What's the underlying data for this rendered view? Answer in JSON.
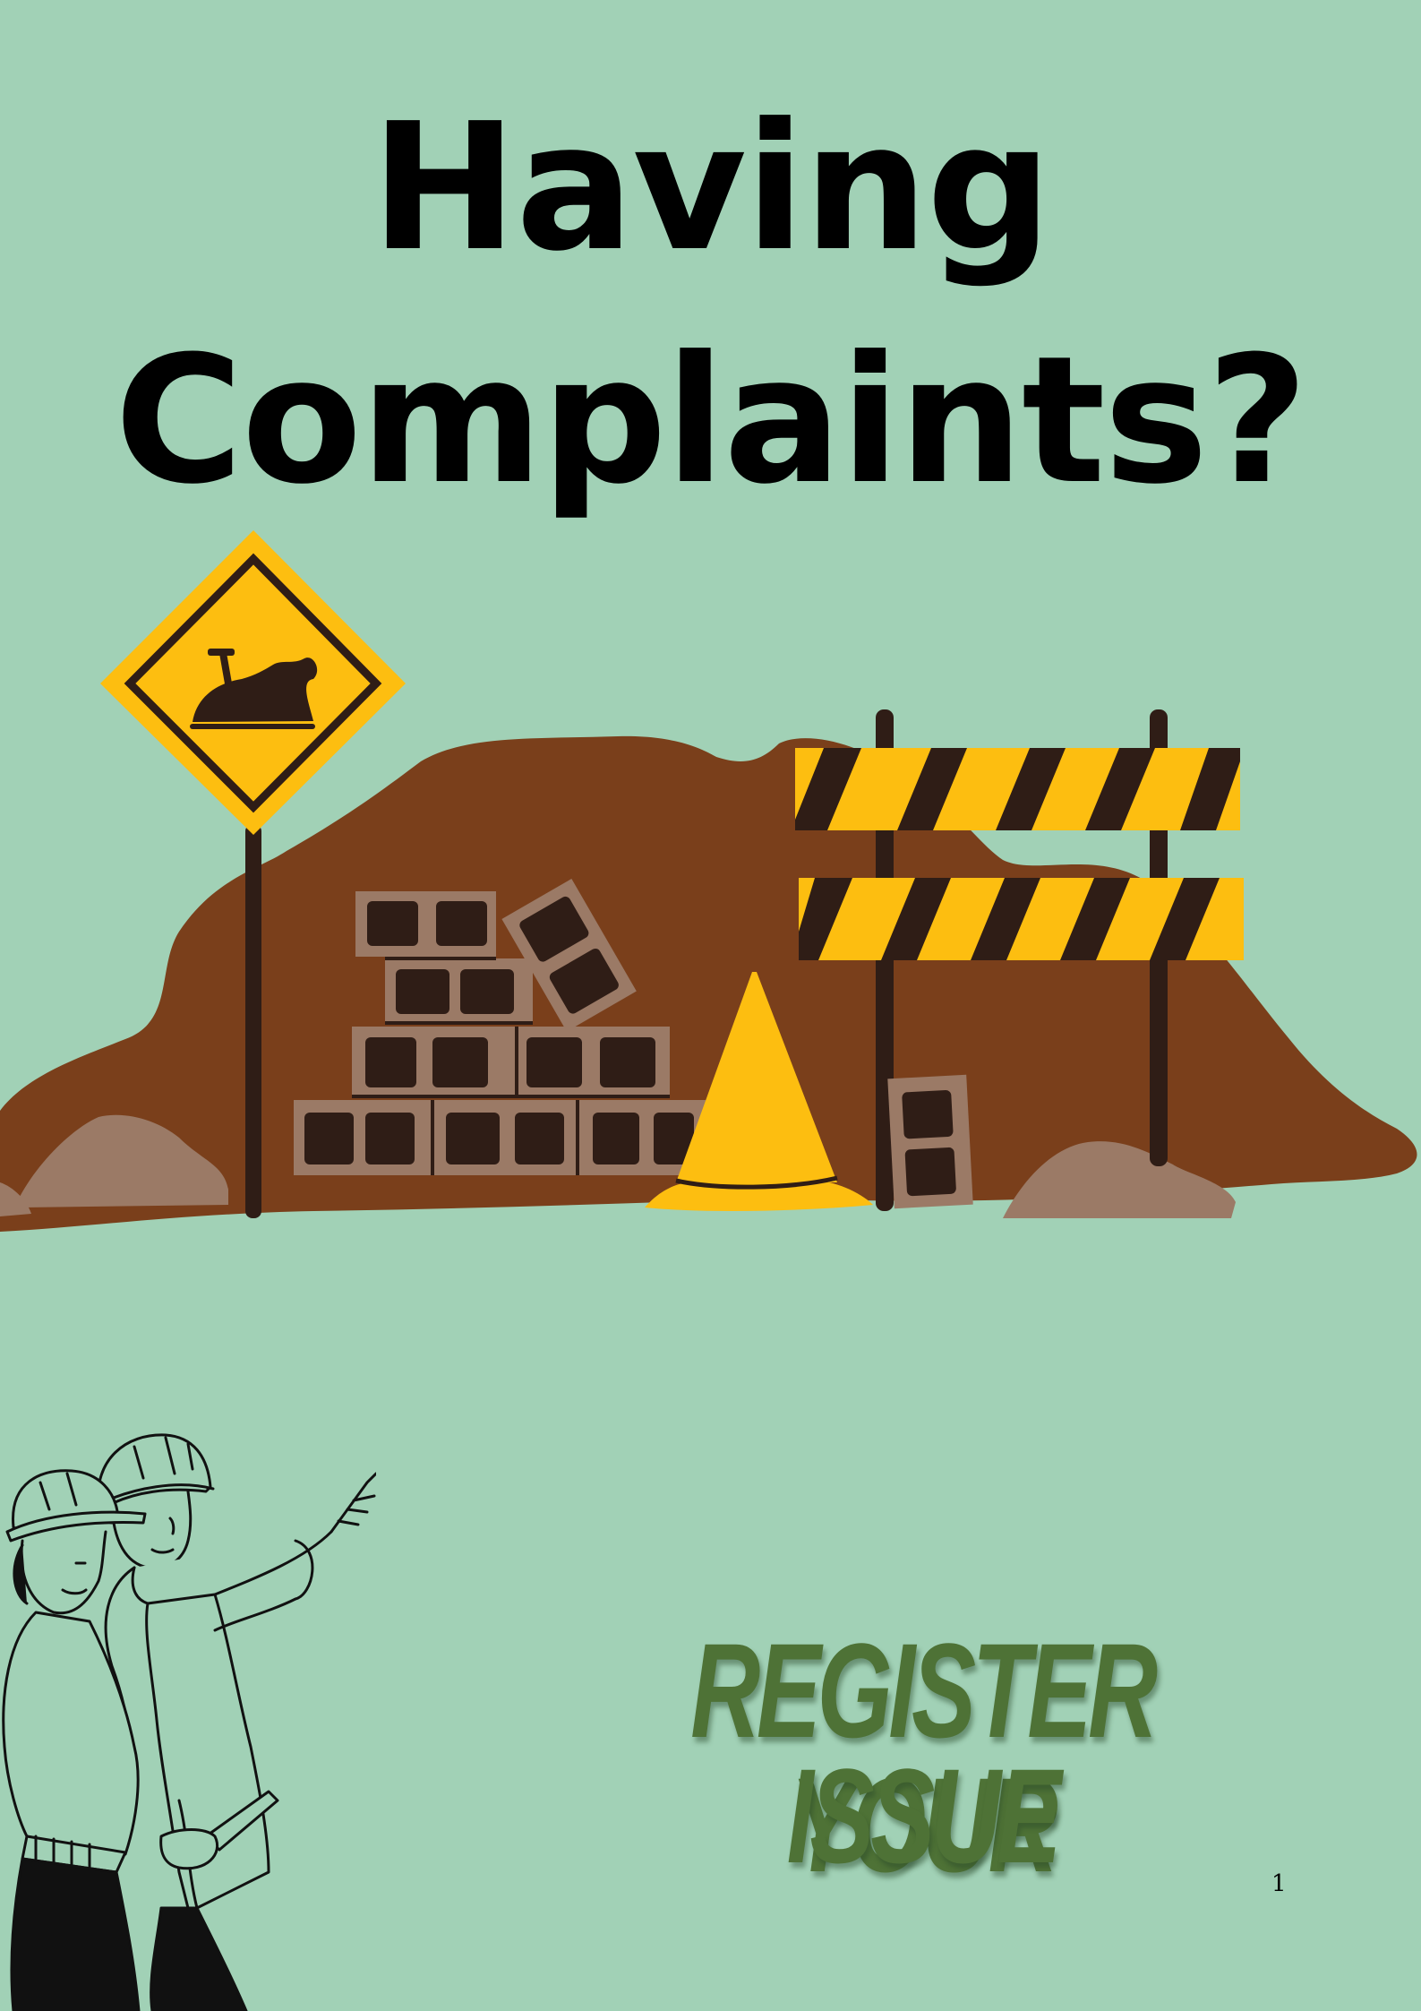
{
  "title": {
    "line1": "Having",
    "line2": "Complaints?"
  },
  "illustration": {
    "road_sign_icon": "excavation-warning-icon",
    "barrier_icon": "striped-barrier-icon",
    "cone_icon": "traffic-cone-icon",
    "bricks_icon": "brick-pile-icon",
    "workers_icon": "construction-workers-icon"
  },
  "cta": {
    "line1": "REGISTER YOUR",
    "line2": "ISSUE"
  },
  "page_number": "1",
  "colors": {
    "background": "#a1d1b6",
    "dirt": "#7a3f1b",
    "brick": "#9b7a66",
    "brick_hole": "#2f1d16",
    "sign_yellow": "#fdbe10",
    "cta_green": "#4e7236"
  }
}
